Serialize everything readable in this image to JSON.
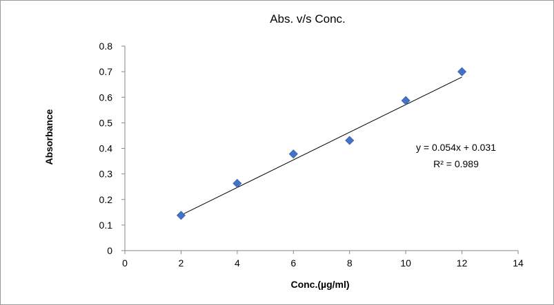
{
  "chart_data": {
    "type": "scatter",
    "title": "Abs. v/s Conc.",
    "xlabel": "Conc.(µg/ml)",
    "ylabel": "Absorbance",
    "xlim": [
      0,
      14
    ],
    "ylim": [
      0,
      0.8
    ],
    "x_ticks": [
      "0",
      "2",
      "4",
      "6",
      "8",
      "10",
      "12",
      "14"
    ],
    "y_ticks": [
      "0",
      "0.1",
      "0.2",
      "0.3",
      "0.4",
      "0.5",
      "0.6",
      "0.7",
      "0.8"
    ],
    "grid": false,
    "legend": "none",
    "marker_color": "#4472C4",
    "series": [
      {
        "x": [
          2,
          4,
          6,
          8,
          10,
          12
        ],
        "y": [
          0.138,
          0.263,
          0.378,
          0.431,
          0.587,
          0.7
        ]
      }
    ],
    "trendline": {
      "type": "linear",
      "x_range": [
        2,
        12
      ],
      "slope": 0.054,
      "intercept": 0.031,
      "equation_label": "y = 0.054x + 0.031",
      "r_squared_label": "R² = 0.989"
    }
  }
}
